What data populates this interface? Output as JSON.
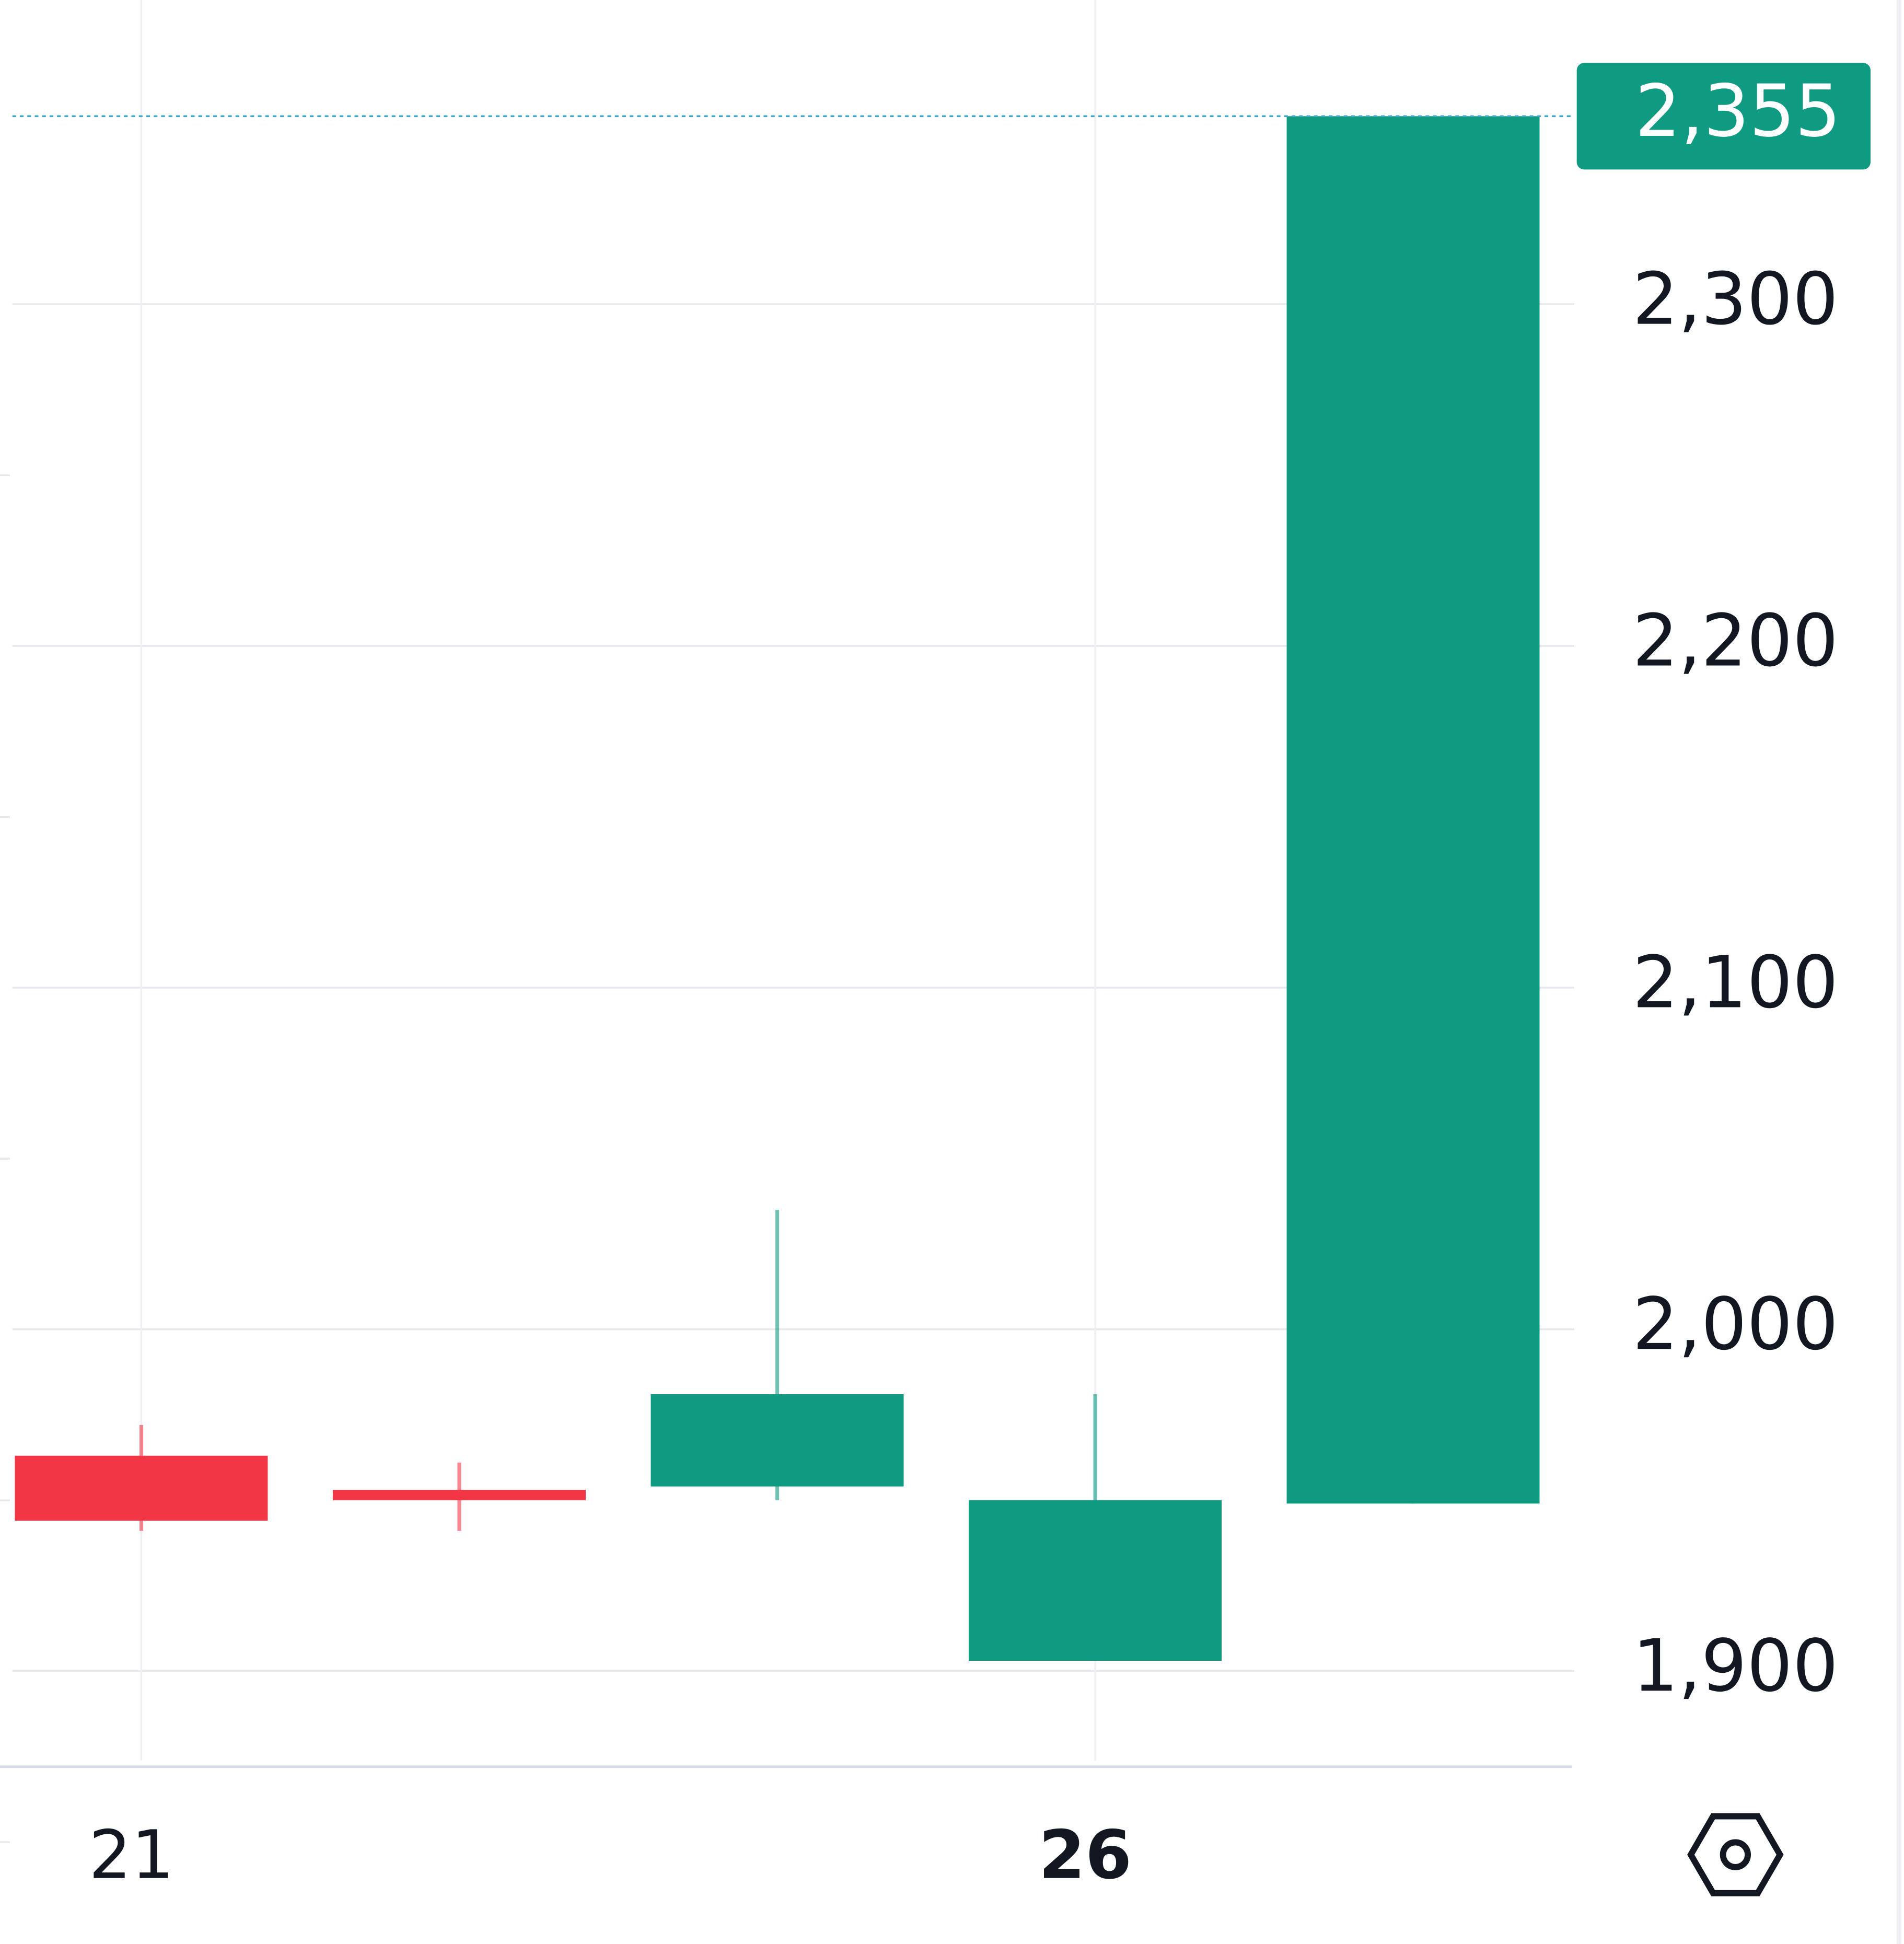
{
  "chart_data": {
    "type": "candlestick",
    "categories": [
      "21",
      null,
      null,
      "26",
      null
    ],
    "category_bold": [
      false,
      false,
      false,
      true,
      false
    ],
    "open": [
      1963,
      1953,
      1954,
      1903,
      1949
    ],
    "high": [
      1972,
      1961,
      2035,
      1981,
      2355
    ],
    "low": [
      1941,
      1941,
      1950,
      1903,
      1949
    ],
    "close": [
      1944,
      1950,
      1981,
      1950,
      2355
    ],
    "up_color": "#0f9a82",
    "down_color": "#f23645",
    "ylim": [
      1872,
      2389
    ],
    "yticks": [
      {
        "value": 1900,
        "label": "1,900"
      },
      {
        "value": 2000,
        "label": "2,000"
      },
      {
        "value": 2100,
        "label": "2,100"
      },
      {
        "value": 2200,
        "label": "2,200"
      },
      {
        "value": 2300,
        "label": "2,300"
      }
    ],
    "last_price": {
      "value": 2355,
      "label": "2,355"
    },
    "grid": true
  }
}
